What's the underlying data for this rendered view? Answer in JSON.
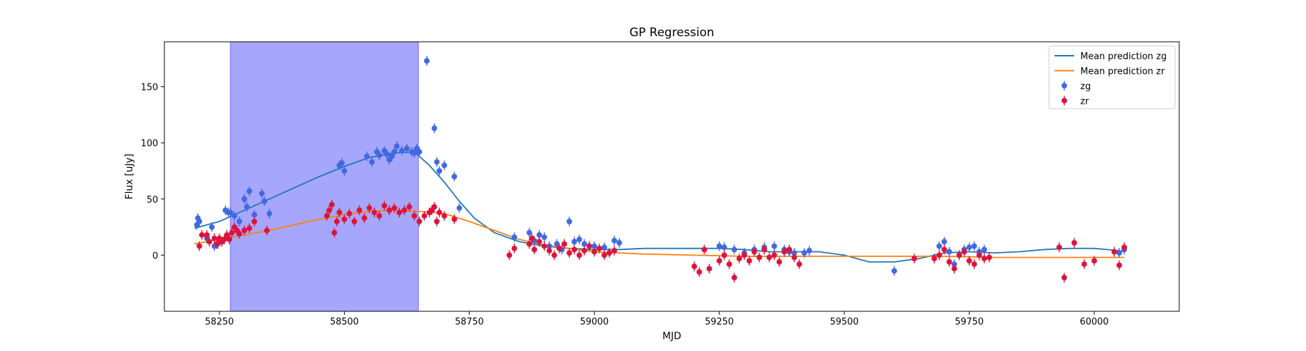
{
  "chart_data": {
    "type": "scatter",
    "title": "GP Regression",
    "xlabel": "MJD",
    "ylabel": "Flux [uJy]",
    "xlim": [
      58140,
      60170
    ],
    "ylim": [
      -50,
      190
    ],
    "xticks": [
      58250,
      58500,
      58750,
      59000,
      59250,
      59500,
      59750,
      60000
    ],
    "yticks": [
      0,
      50,
      100,
      150
    ],
    "grid": false,
    "legend_position": "top-right",
    "shaded_region": {
      "x_start": 58272,
      "x_end": 58648,
      "color": "#a6a6fd"
    },
    "series": [
      {
        "name": "Mean prediction zg",
        "kind": "line",
        "color": "#1f77b4",
        "x": [
          58200,
          58250,
          58300,
          58350,
          58400,
          58450,
          58500,
          58550,
          58600,
          58640,
          58670,
          58700,
          58730,
          58760,
          58800,
          58850,
          58900,
          58950,
          59000,
          59050,
          59100,
          59150,
          59200,
          59250,
          59300,
          59350,
          59400,
          59450,
          59500,
          59550,
          59600,
          59650,
          59700,
          59750,
          59800,
          59850,
          59900,
          59950,
          60000,
          60050,
          60060
        ],
        "y": [
          24,
          30,
          40,
          50,
          60,
          70,
          79,
          87,
          91,
          92,
          80,
          65,
          48,
          33,
          20,
          12,
          8,
          6,
          5,
          5,
          6,
          6,
          6,
          6,
          5,
          3,
          3,
          3,
          0,
          -6,
          -6,
          -3,
          2,
          3,
          2,
          3,
          5,
          6,
          6,
          4,
          3
        ]
      },
      {
        "name": "Mean prediction zr",
        "kind": "line",
        "color": "#ff7f0e",
        "x": [
          58200,
          58250,
          58300,
          58350,
          58400,
          58450,
          58500,
          58550,
          58600,
          58650,
          58700,
          58750,
          58800,
          58850,
          58900,
          58950,
          59000,
          59050,
          59100,
          59200,
          59300,
          59400,
          59500,
          59600,
          59700,
          59800,
          59900,
          60000,
          60060
        ],
        "y": [
          10,
          14,
          18,
          22,
          27,
          32,
          36,
          39,
          40,
          39,
          37,
          30,
          22,
          14,
          9,
          6,
          3,
          2,
          1,
          0,
          -1,
          -1,
          -1,
          -1,
          -1,
          -2,
          -2,
          -2,
          -2
        ]
      },
      {
        "name": "zg",
        "kind": "errorbar",
        "color": "#4169e1",
        "x": [
          58205,
          58207,
          58210,
          58225,
          58235,
          58240,
          58247,
          58255,
          58262,
          58268,
          58272,
          58280,
          58290,
          58300,
          58305,
          58310,
          58320,
          58335,
          58340,
          58350,
          58490,
          58495,
          58500,
          58545,
          58555,
          58565,
          58570,
          58580,
          58585,
          58590,
          58595,
          58600,
          58605,
          58615,
          58625,
          58635,
          58640,
          58645,
          58650,
          58665,
          58680,
          58685,
          58690,
          58700,
          58720,
          58730,
          58840,
          58870,
          58880,
          58890,
          58900,
          58910,
          58925,
          58935,
          58950,
          58960,
          58970,
          58980,
          58990,
          59000,
          59020,
          59040,
          59050,
          59250,
          59260,
          59280,
          59300,
          59320,
          59340,
          59360,
          59380,
          59390,
          59400,
          59420,
          59430,
          59600,
          59690,
          59700,
          59710,
          59720,
          59730,
          59740,
          59750,
          59760,
          59770,
          59780,
          60050,
          60060
        ],
        "y": [
          27,
          33,
          30,
          15,
          25,
          8,
          10,
          12,
          40,
          38,
          38,
          35,
          30,
          50,
          43,
          57,
          36,
          55,
          48,
          37,
          80,
          82,
          75,
          88,
          83,
          92,
          89,
          93,
          90,
          85,
          88,
          92,
          97,
          93,
          95,
          92,
          91,
          95,
          92,
          173,
          113,
          83,
          75,
          80,
          70,
          42,
          16,
          20,
          13,
          18,
          16,
          8,
          10,
          5,
          30,
          12,
          14,
          10,
          8,
          8,
          7,
          13,
          11,
          8,
          7,
          5,
          2,
          5,
          7,
          8,
          5,
          3,
          2,
          2,
          4,
          -14,
          8,
          12,
          3,
          -8,
          0,
          5,
          7,
          8,
          3,
          5,
          2,
          5
        ]
      },
      {
        "name": "zr",
        "kind": "errorbar",
        "color": "#dc143c",
        "x": [
          58210,
          58215,
          58225,
          58230,
          58240,
          58245,
          58250,
          58255,
          58260,
          58265,
          58270,
          58275,
          58280,
          58285,
          58290,
          58300,
          58310,
          58320,
          58345,
          58465,
          58470,
          58475,
          58480,
          58485,
          58490,
          58500,
          58510,
          58520,
          58530,
          58540,
          58550,
          58560,
          58570,
          58580,
          58590,
          58600,
          58610,
          58620,
          58630,
          58640,
          58650,
          58660,
          58670,
          58675,
          58680,
          58685,
          58690,
          58700,
          58720,
          58830,
          58840,
          58870,
          58875,
          58880,
          58890,
          58900,
          58910,
          58920,
          58930,
          58940,
          58950,
          58960,
          58970,
          58980,
          58990,
          59000,
          59010,
          59020,
          59030,
          59040,
          59200,
          59210,
          59220,
          59230,
          59250,
          59260,
          59270,
          59280,
          59290,
          59300,
          59310,
          59320,
          59330,
          59340,
          59350,
          59360,
          59370,
          59380,
          59390,
          59400,
          59410,
          59640,
          59680,
          59690,
          59700,
          59710,
          59720,
          59730,
          59740,
          59750,
          59760,
          59770,
          59780,
          59790,
          59930,
          59940,
          59960,
          59980,
          60000,
          60040,
          60050,
          60060
        ],
        "y": [
          8,
          18,
          18,
          12,
          15,
          10,
          15,
          12,
          14,
          18,
          14,
          20,
          25,
          22,
          19,
          22,
          24,
          30,
          22,
          35,
          40,
          45,
          20,
          30,
          38,
          32,
          37,
          30,
          40,
          33,
          42,
          38,
          35,
          44,
          40,
          42,
          38,
          40,
          43,
          35,
          30,
          35,
          38,
          40,
          43,
          30,
          38,
          35,
          32,
          0,
          6,
          10,
          15,
          5,
          12,
          8,
          4,
          0,
          6,
          10,
          2,
          5,
          0,
          4,
          8,
          3,
          6,
          0,
          2,
          4,
          -10,
          -15,
          5,
          -12,
          -5,
          0,
          -8,
          -20,
          -3,
          0,
          -5,
          3,
          -2,
          5,
          -2,
          0,
          -6,
          3,
          5,
          -2,
          -8,
          -3,
          -3,
          0,
          5,
          -6,
          -12,
          0,
          3,
          -5,
          -8,
          0,
          -3,
          -2,
          7,
          -20,
          11,
          -8,
          -5,
          3,
          -9,
          7
        ]
      }
    ]
  }
}
